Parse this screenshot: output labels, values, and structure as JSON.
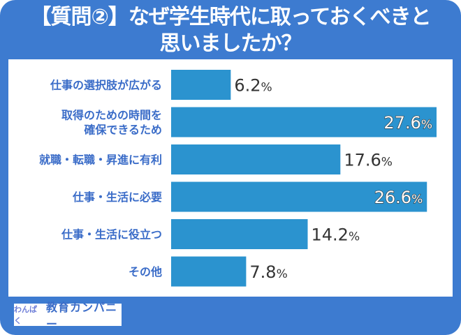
{
  "title_line1": "【質問②】なぜ学生時代に取っておくべきと",
  "title_line2": "思いましたか？",
  "logo": {
    "small": "わんぱく",
    "big": "教育カンパニー"
  },
  "chart_data": {
    "type": "bar",
    "orientation": "horizontal",
    "categories": [
      [
        "仕事の選択肢が広がる"
      ],
      [
        "取得のための時間を",
        "確保できるため"
      ],
      [
        "就職・転職・昇進に有利"
      ],
      [
        "仕事・生活に必要"
      ],
      [
        "仕事・生活に役立つ"
      ],
      [
        "その他"
      ]
    ],
    "values": [
      6.2,
      27.6,
      17.6,
      26.6,
      14.2,
      7.8
    ],
    "unit": "%",
    "bar_color": "#2b93cf",
    "label_color": "#3a6cc8",
    "grid": false
  }
}
